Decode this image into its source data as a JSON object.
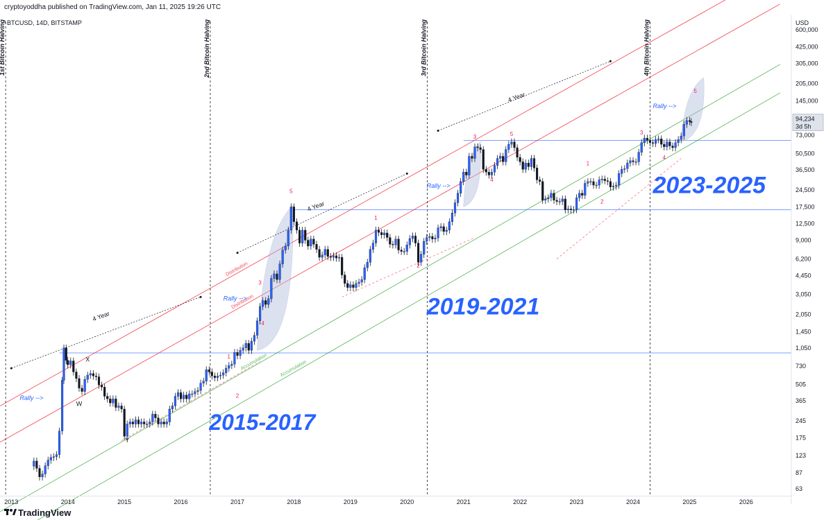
{
  "header": {
    "text": "cryptoyoddha published on TradingView.com, Jan 11, 2025 19:26 UTC"
  },
  "footer": {
    "brand": "TradingView",
    "logo_icon": "tradingview-logo-icon"
  },
  "chart_data": {
    "type": "candlestick",
    "symbol": "BTCUSD, 14D, BITSTAMP",
    "currency": "USD",
    "log_scale": true,
    "grid": false,
    "ylim": [
      55,
      800000
    ],
    "xlim": [
      2012.8,
      2026.8
    ],
    "y_ticks": [
      "600,000",
      "425,000",
      "305,000",
      "205,000",
      "145,000",
      "105,000",
      "73,000",
      "50,500",
      "36,500",
      "24,500",
      "17,500",
      "12,500",
      "9,000",
      "6,200",
      "4,450",
      "3,050",
      "2,050",
      "1,450",
      "1,050",
      "730",
      "505",
      "365",
      "245",
      "175",
      "123",
      "87",
      "63"
    ],
    "x_ticks": [
      "2013",
      "2014",
      "2015",
      "2016",
      "2017",
      "2018",
      "2019",
      "2020",
      "2021",
      "2022",
      "2023",
      "2024",
      "2025",
      "2026"
    ],
    "price_label": {
      "price": "94,234",
      "countdown": "3d 5h"
    },
    "halvings": [
      {
        "x": 2012.9,
        "label": "1st Bitcoin Halving"
      },
      {
        "x": 2016.52,
        "label": "2nd Bitcoin Halving"
      },
      {
        "x": 2020.36,
        "label": "3rd Bitcoin Halving"
      },
      {
        "x": 2024.3,
        "label": "4th Bitcoin Halving"
      }
    ],
    "horizontal_lines": [
      {
        "y": 950,
        "x_start": 2013.85
      },
      {
        "y": 16500,
        "x_start": 2017.98
      },
      {
        "y": 66000,
        "x_start": 2021.0
      }
    ],
    "channels": [
      {
        "name": "Distribution",
        "color": "#f23645",
        "points": [
          [
            2012.8,
            330
          ],
          [
            2026.6,
            2000000
          ]
        ]
      },
      {
        "name": "Distribution",
        "color": "#f23645",
        "points": [
          [
            2012.8,
            160
          ],
          [
            2026.6,
            1000000
          ]
        ]
      },
      {
        "name": "Accumulation",
        "color": "#4caf50",
        "points": [
          [
            2012.8,
            40
          ],
          [
            2026.6,
            300000
          ]
        ]
      },
      {
        "name": "Accumulation",
        "color": "#4caf50",
        "points": [
          [
            2012.8,
            22
          ],
          [
            2026.6,
            170000
          ]
        ]
      }
    ],
    "cycle_labels": [
      "2015-2017",
      "2019-2021",
      "2023-2025"
    ],
    "cycle_arrow_label": "4 Year",
    "rally_label": "Rally -->",
    "wave_labels": [
      {
        "text": "X",
        "x": 2014.35,
        "y": 800
      },
      {
        "text": "W",
        "x": 2014.2,
        "y": 330
      },
      {
        "text": "Y",
        "x": 2015.05,
        "y": 160
      },
      {
        "text": "1",
        "x": 2016.85,
        "y": 850
      },
      {
        "text": "2",
        "x": 2017.0,
        "y": 390
      },
      {
        "text": "3",
        "x": 2017.4,
        "y": 3700
      },
      {
        "text": "4",
        "x": 2017.45,
        "y": 1650
      },
      {
        "text": "5",
        "x": 2017.95,
        "y": 23000
      },
      {
        "text": "1",
        "x": 2019.45,
        "y": 13500
      },
      {
        "text": "2",
        "x": 2020.2,
        "y": 5200
      },
      {
        "text": "3",
        "x": 2021.2,
        "y": 68000
      },
      {
        "text": "4",
        "x": 2021.5,
        "y": 29000
      },
      {
        "text": "5",
        "x": 2021.85,
        "y": 72000
      },
      {
        "text": "1",
        "x": 2023.2,
        "y": 40000
      },
      {
        "text": "2",
        "x": 2023.45,
        "y": 18700
      },
      {
        "text": "3",
        "x": 2024.15,
        "y": 74000
      },
      {
        "text": "4",
        "x": 2024.55,
        "y": 45000
      },
      {
        "text": "5",
        "x": 2025.1,
        "y": 170000
      }
    ],
    "closes": [
      [
        2013.4,
        110
      ],
      [
        2013.45,
        95
      ],
      [
        2013.5,
        80
      ],
      [
        2013.55,
        85
      ],
      [
        2013.6,
        100
      ],
      [
        2013.65,
        112
      ],
      [
        2013.7,
        118
      ],
      [
        2013.75,
        120
      ],
      [
        2013.8,
        125
      ],
      [
        2013.85,
        200
      ],
      [
        2013.9,
        550
      ],
      [
        2013.93,
        1050
      ],
      [
        2013.97,
        820
      ],
      [
        2014.0,
        750
      ],
      [
        2014.05,
        810
      ],
      [
        2014.1,
        650
      ],
      [
        2014.15,
        570
      ],
      [
        2014.2,
        470
      ],
      [
        2014.25,
        440
      ],
      [
        2014.3,
        560
      ],
      [
        2014.35,
        610
      ],
      [
        2014.4,
        630
      ],
      [
        2014.45,
        600
      ],
      [
        2014.5,
        590
      ],
      [
        2014.55,
        500
      ],
      [
        2014.6,
        480
      ],
      [
        2014.65,
        400
      ],
      [
        2014.7,
        380
      ],
      [
        2014.75,
        350
      ],
      [
        2014.8,
        380
      ],
      [
        2014.85,
        320
      ],
      [
        2014.9,
        330
      ],
      [
        2014.95,
        310
      ],
      [
        2015.0,
        180
      ],
      [
        2015.05,
        230
      ],
      [
        2015.1,
        240
      ],
      [
        2015.15,
        230
      ],
      [
        2015.2,
        250
      ],
      [
        2015.25,
        230
      ],
      [
        2015.3,
        240
      ],
      [
        2015.35,
        230
      ],
      [
        2015.4,
        230
      ],
      [
        2015.45,
        240
      ],
      [
        2015.5,
        280
      ],
      [
        2015.55,
        260
      ],
      [
        2015.6,
        230
      ],
      [
        2015.65,
        240
      ],
      [
        2015.7,
        230
      ],
      [
        2015.75,
        240
      ],
      [
        2015.8,
        310
      ],
      [
        2015.85,
        330
      ],
      [
        2015.9,
        400
      ],
      [
        2015.95,
        430
      ],
      [
        2016.0,
        380
      ],
      [
        2016.05,
        410
      ],
      [
        2016.1,
        380
      ],
      [
        2016.15,
        420
      ],
      [
        2016.2,
        420
      ],
      [
        2016.25,
        440
      ],
      [
        2016.3,
        450
      ],
      [
        2016.35,
        520
      ],
      [
        2016.4,
        540
      ],
      [
        2016.45,
        680
      ],
      [
        2016.5,
        650
      ],
      [
        2016.55,
        600
      ],
      [
        2016.6,
        580
      ],
      [
        2016.65,
        600
      ],
      [
        2016.7,
        610
      ],
      [
        2016.75,
        640
      ],
      [
        2016.8,
        700
      ],
      [
        2016.85,
        740
      ],
      [
        2016.9,
        760
      ],
      [
        2016.95,
        960
      ],
      [
        2017.0,
        900
      ],
      [
        2017.05,
        1000
      ],
      [
        2017.1,
        1050
      ],
      [
        2017.15,
        1150
      ],
      [
        2017.2,
        1000
      ],
      [
        2017.25,
        1200
      ],
      [
        2017.3,
        1350
      ],
      [
        2017.35,
        1800
      ],
      [
        2017.4,
        2400
      ],
      [
        2017.45,
        2700
      ],
      [
        2017.5,
        2500
      ],
      [
        2017.55,
        2800
      ],
      [
        2017.6,
        4200
      ],
      [
        2017.65,
        4600
      ],
      [
        2017.7,
        4100
      ],
      [
        2017.75,
        5600
      ],
      [
        2017.8,
        7400
      ],
      [
        2017.85,
        8000
      ],
      [
        2017.9,
        11000
      ],
      [
        2017.95,
        17500
      ],
      [
        2018.0,
        13000
      ],
      [
        2018.05,
        11000
      ],
      [
        2018.1,
        8500
      ],
      [
        2018.15,
        11000
      ],
      [
        2018.2,
        9000
      ],
      [
        2018.25,
        8000
      ],
      [
        2018.3,
        9200
      ],
      [
        2018.35,
        8300
      ],
      [
        2018.4,
        7500
      ],
      [
        2018.45,
        6400
      ],
      [
        2018.5,
        6700
      ],
      [
        2018.55,
        7500
      ],
      [
        2018.6,
        6500
      ],
      [
        2018.65,
        6400
      ],
      [
        2018.7,
        6600
      ],
      [
        2018.75,
        6300
      ],
      [
        2018.8,
        6400
      ],
      [
        2018.85,
        4500
      ],
      [
        2018.9,
        3800
      ],
      [
        2018.95,
        3500
      ],
      [
        2019.0,
        3700
      ],
      [
        2019.05,
        3500
      ],
      [
        2019.1,
        3800
      ],
      [
        2019.15,
        3900
      ],
      [
        2019.2,
        4100
      ],
      [
        2019.25,
        5200
      ],
      [
        2019.3,
        5800
      ],
      [
        2019.35,
        7500
      ],
      [
        2019.4,
        8500
      ],
      [
        2019.45,
        11000
      ],
      [
        2019.5,
        10500
      ],
      [
        2019.55,
        10000
      ],
      [
        2019.6,
        10400
      ],
      [
        2019.65,
        9500
      ],
      [
        2019.7,
        8300
      ],
      [
        2019.75,
        8200
      ],
      [
        2019.8,
        9200
      ],
      [
        2019.85,
        7400
      ],
      [
        2019.9,
        7200
      ],
      [
        2019.95,
        7200
      ],
      [
        2020.0,
        8200
      ],
      [
        2020.05,
        9300
      ],
      [
        2020.1,
        9800
      ],
      [
        2020.15,
        8500
      ],
      [
        2020.2,
        5800
      ],
      [
        2020.25,
        6800
      ],
      [
        2020.3,
        8800
      ],
      [
        2020.35,
        9500
      ],
      [
        2020.4,
        9700
      ],
      [
        2020.45,
        9200
      ],
      [
        2020.5,
        9400
      ],
      [
        2020.55,
        11500
      ],
      [
        2020.6,
        11800
      ],
      [
        2020.65,
        10700
      ],
      [
        2020.7,
        11000
      ],
      [
        2020.75,
        13000
      ],
      [
        2020.8,
        15500
      ],
      [
        2020.85,
        19000
      ],
      [
        2020.9,
        23000
      ],
      [
        2020.95,
        29000
      ],
      [
        2021.0,
        35000
      ],
      [
        2021.05,
        33000
      ],
      [
        2021.1,
        48000
      ],
      [
        2021.15,
        46000
      ],
      [
        2021.2,
        58000
      ],
      [
        2021.25,
        57000
      ],
      [
        2021.3,
        55000
      ],
      [
        2021.35,
        37000
      ],
      [
        2021.4,
        35000
      ],
      [
        2021.45,
        33000
      ],
      [
        2021.5,
        35000
      ],
      [
        2021.55,
        40000
      ],
      [
        2021.6,
        46000
      ],
      [
        2021.65,
        48000
      ],
      [
        2021.7,
        43000
      ],
      [
        2021.75,
        55000
      ],
      [
        2021.8,
        61000
      ],
      [
        2021.85,
        64000
      ],
      [
        2021.9,
        57000
      ],
      [
        2021.95,
        47000
      ],
      [
        2022.0,
        43000
      ],
      [
        2022.05,
        37000
      ],
      [
        2022.1,
        42000
      ],
      [
        2022.15,
        39000
      ],
      [
        2022.2,
        46000
      ],
      [
        2022.25,
        38000
      ],
      [
        2022.3,
        30000
      ],
      [
        2022.35,
        29000
      ],
      [
        2022.4,
        20000
      ],
      [
        2022.45,
        20500
      ],
      [
        2022.5,
        21000
      ],
      [
        2022.55,
        23000
      ],
      [
        2022.6,
        20000
      ],
      [
        2022.65,
        19500
      ],
      [
        2022.7,
        19500
      ],
      [
        2022.75,
        20500
      ],
      [
        2022.8,
        16500
      ],
      [
        2022.85,
        16800
      ],
      [
        2022.9,
        16500
      ],
      [
        2022.95,
        16600
      ],
      [
        2023.0,
        21000
      ],
      [
        2023.05,
        23000
      ],
      [
        2023.1,
        22000
      ],
      [
        2023.15,
        28000
      ],
      [
        2023.2,
        29000
      ],
      [
        2023.25,
        29000
      ],
      [
        2023.3,
        27000
      ],
      [
        2023.35,
        27000
      ],
      [
        2023.4,
        30000
      ],
      [
        2023.45,
        30500
      ],
      [
        2023.5,
        29500
      ],
      [
        2023.55,
        29000
      ],
      [
        2023.6,
        26000
      ],
      [
        2023.65,
        26500
      ],
      [
        2023.7,
        27000
      ],
      [
        2023.75,
        34000
      ],
      [
        2023.8,
        37000
      ],
      [
        2023.85,
        37500
      ],
      [
        2023.9,
        42000
      ],
      [
        2023.95,
        44000
      ],
      [
        2024.0,
        43000
      ],
      [
        2024.05,
        43000
      ],
      [
        2024.1,
        52000
      ],
      [
        2024.15,
        63000
      ],
      [
        2024.2,
        69000
      ],
      [
        2024.25,
        66000
      ],
      [
        2024.3,
        63000
      ],
      [
        2024.35,
        62000
      ],
      [
        2024.4,
        67000
      ],
      [
        2024.45,
        68000
      ],
      [
        2024.5,
        61000
      ],
      [
        2024.55,
        58000
      ],
      [
        2024.6,
        64000
      ],
      [
        2024.65,
        59000
      ],
      [
        2024.7,
        57000
      ],
      [
        2024.75,
        63000
      ],
      [
        2024.8,
        67000
      ],
      [
        2024.85,
        72000
      ],
      [
        2024.9,
        91000
      ],
      [
        2024.95,
        98000
      ],
      [
        2025.0,
        96000
      ],
      [
        2025.03,
        94234
      ]
    ]
  }
}
